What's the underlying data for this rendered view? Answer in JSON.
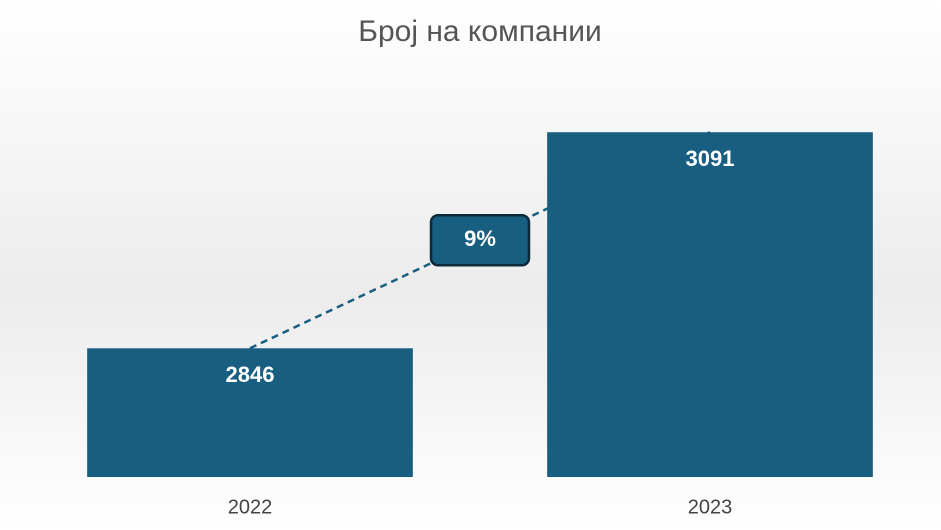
{
  "chart_data": {
    "type": "bar",
    "title": "Број на компании",
    "categories": [
      "2022",
      "2023"
    ],
    "values": [
      2846,
      3091
    ],
    "color": "#185e80",
    "ylim": [
      2700,
      3100
    ],
    "annotation": "9%"
  }
}
